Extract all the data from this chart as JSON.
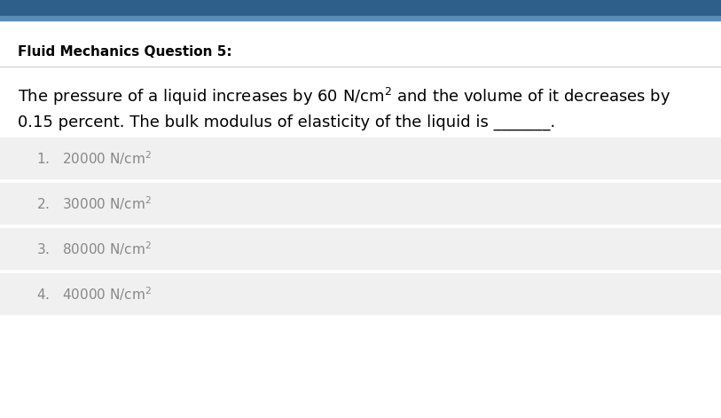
{
  "title": "Fluid Mechanics Question 5:",
  "options": [
    "1.   20000 N/cm²",
    "2.   30000 N/cm²",
    "3.   80000 N/cm²",
    "4.   40000 N/cm²"
  ],
  "bg_color": "#ffffff",
  "header_bar_color": "#2e5f8a",
  "header_bar_thin_color": "#5a8db5",
  "option_bg_color": "#f0f0f0",
  "title_color": "#000000",
  "question_color": "#000000",
  "option_color": "#888888",
  "divider_color": "#cccccc",
  "title_fontsize": 11,
  "question_fontsize": 13,
  "option_fontsize": 11
}
